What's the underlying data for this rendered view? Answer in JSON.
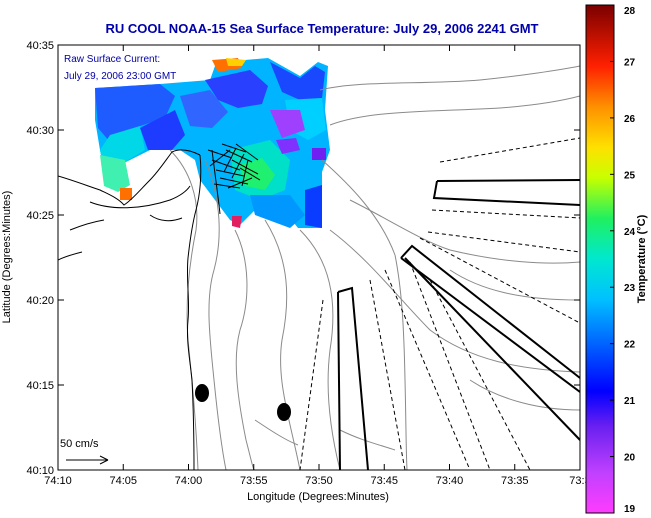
{
  "title": "RU COOL  NOAA-15  Sea Surface Temperature:  July 29, 2006 2241 GMT",
  "annotation": {
    "line1": "Raw Surface Current:",
    "line2": "July 29, 2006 23:00 GMT"
  },
  "scale_label": "50 cm/s",
  "axes": {
    "xlabel": "Longitude (Degrees:Minutes)",
    "ylabel": "Latitude (Degrees:Minutes)",
    "x_ticks": [
      "74:10",
      "74:05",
      "74:00",
      "73:55",
      "73:50",
      "73:45",
      "73:40",
      "73:35",
      "73:3"
    ],
    "y_ticks": [
      "40:35",
      "40:30",
      "40:25",
      "40:20",
      "40:15",
      "40:10"
    ]
  },
  "colorbar": {
    "label": "Temperature (°C)",
    "min": 19,
    "max": 28,
    "ticks": [
      "28",
      "27",
      "26",
      "25",
      "24",
      "23",
      "22",
      "21",
      "20",
      "19"
    ]
  },
  "colors": {
    "title": "#0000a8",
    "coast": "#000000",
    "bathymetry": "#8a8a8a"
  }
}
